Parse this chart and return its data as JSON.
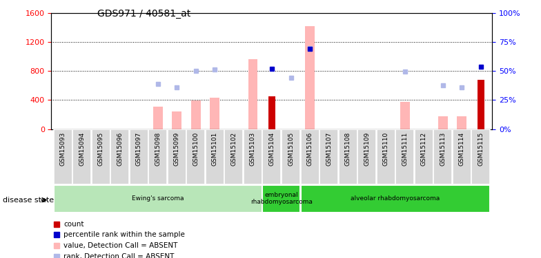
{
  "title": "GDS971 / 40581_at",
  "samples": [
    "GSM15093",
    "GSM15094",
    "GSM15095",
    "GSM15096",
    "GSM15097",
    "GSM15098",
    "GSM15099",
    "GSM15100",
    "GSM15101",
    "GSM15102",
    "GSM15103",
    "GSM15104",
    "GSM15105",
    "GSM15106",
    "GSM15107",
    "GSM15108",
    "GSM15109",
    "GSM15110",
    "GSM15111",
    "GSM15112",
    "GSM15113",
    "GSM15114",
    "GSM15115"
  ],
  "value_absent": [
    null,
    null,
    null,
    null,
    null,
    310,
    240,
    390,
    430,
    null,
    960,
    null,
    null,
    1420,
    null,
    null,
    null,
    null,
    370,
    null,
    175,
    175,
    null
  ],
  "rank_absent": [
    null,
    null,
    null,
    null,
    null,
    620,
    570,
    800,
    820,
    null,
    null,
    null,
    710,
    1110,
    null,
    null,
    null,
    null,
    790,
    null,
    600,
    570,
    null
  ],
  "count": [
    null,
    null,
    null,
    null,
    null,
    null,
    null,
    null,
    null,
    null,
    null,
    450,
    null,
    null,
    null,
    null,
    null,
    null,
    null,
    null,
    null,
    null,
    680
  ],
  "percentile_rank": [
    null,
    null,
    null,
    null,
    null,
    null,
    null,
    null,
    null,
    null,
    null,
    830,
    null,
    1100,
    null,
    null,
    null,
    null,
    null,
    null,
    null,
    null,
    860
  ],
  "group_configs": [
    {
      "label": "Ewing's sarcoma",
      "start": 0,
      "end": 10,
      "color": "#b8e6b8"
    },
    {
      "label": "embryonal\nrhabdomyosarcoma",
      "start": 11,
      "end": 12,
      "color": "#33cc33"
    },
    {
      "label": "alveolar rhabdomyosarcoma",
      "start": 13,
      "end": 22,
      "color": "#33cc33"
    }
  ],
  "ylim_left": [
    0,
    1600
  ],
  "ylim_right": [
    0,
    100
  ],
  "yticks_left": [
    0,
    400,
    800,
    1200,
    1600
  ],
  "yticks_right": [
    0,
    25,
    50,
    75,
    100
  ],
  "color_value_absent": "#ffb6b6",
  "color_rank_absent": "#b0b8e8",
  "color_count": "#cc0000",
  "color_percentile": "#0000cc",
  "legend_items": [
    {
      "color": "#cc0000",
      "label": "count"
    },
    {
      "color": "#0000cc",
      "label": "percentile rank within the sample"
    },
    {
      "color": "#ffb6b6",
      "label": "value, Detection Call = ABSENT"
    },
    {
      "color": "#b0b8e8",
      "label": "rank, Detection Call = ABSENT"
    }
  ]
}
